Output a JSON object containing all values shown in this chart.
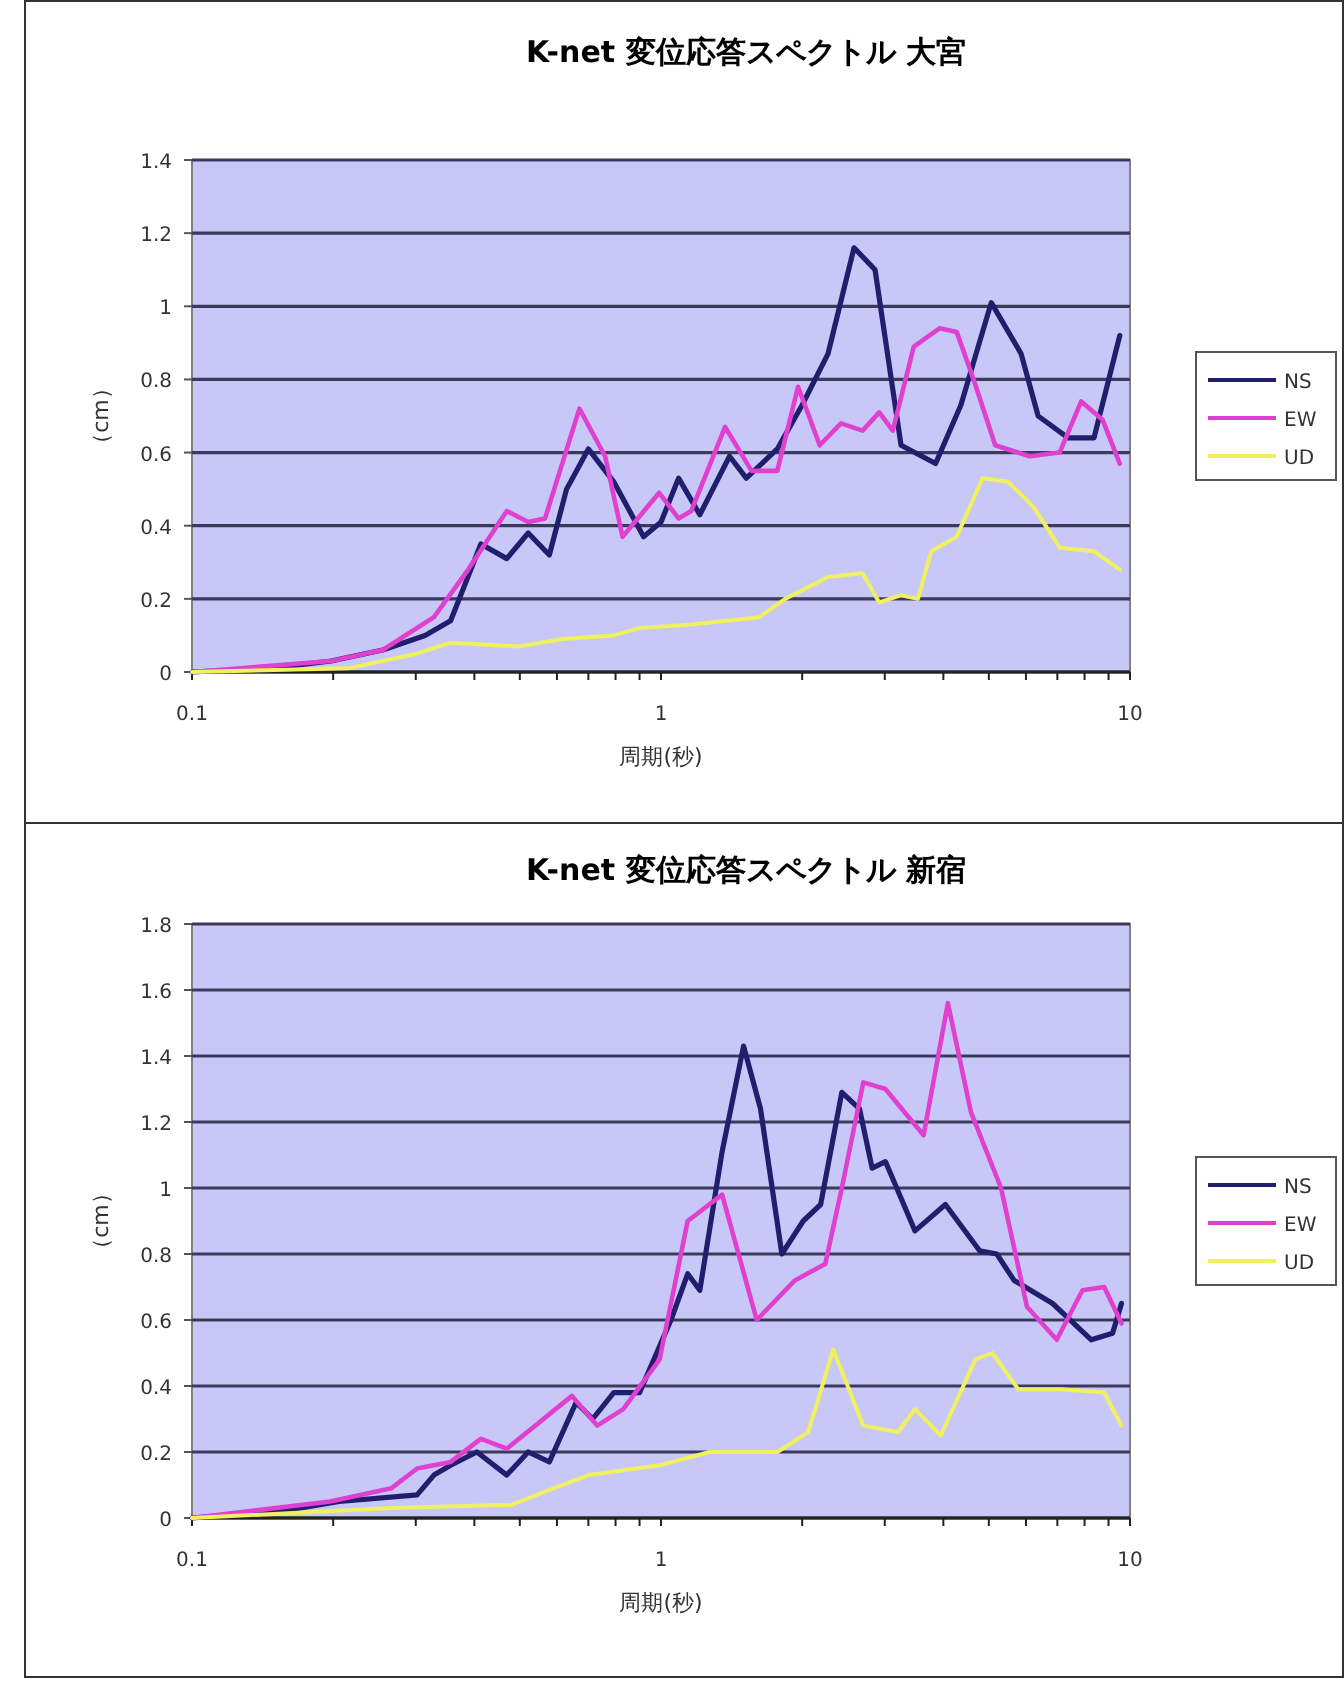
{
  "chart_data": [
    {
      "type": "line",
      "title": "K-net 変位応答スペクトル 大宮",
      "xlabel": "周期(秒)",
      "ylabel": "（cm）",
      "log": "x",
      "xlim": [
        0.1,
        10
      ],
      "xticks": [
        0.1,
        {
          "value": 0.2,
          "label": null
        },
        {
          "value": 0.3,
          "label": null
        },
        {
          "value": 0.4,
          "label": null
        },
        {
          "value": 0.5,
          "label": null
        },
        {
          "value": 0.6,
          "label": null
        },
        {
          "value": 0.7,
          "label": null
        },
        {
          "value": 0.8,
          "label": null
        },
        {
          "value": 0.9,
          "label": null
        },
        1,
        {
          "value": 2,
          "label": null
        },
        {
          "value": 3,
          "label": null
        },
        {
          "value": 4,
          "label": null
        },
        {
          "value": 5,
          "label": null
        },
        {
          "value": 6,
          "label": null
        },
        {
          "value": 7,
          "label": null
        },
        {
          "value": 8,
          "label": null
        },
        {
          "value": 9,
          "label": null
        },
        10
      ],
      "ylim": [
        0,
        1.4
      ],
      "yticks": [
        0,
        0.2,
        0.4,
        0.6,
        0.8,
        1,
        1.2,
        1.4
      ],
      "grid": "y",
      "legend": "right",
      "marker": "none",
      "line_style": "solid",
      "series": [
        {
          "name": "NS",
          "color": "#1f1f6e",
          "x": [
            0.1,
            0.147,
            0.198,
            0.255,
            0.314,
            0.356,
            0.413,
            0.469,
            0.521,
            0.578,
            0.629,
            0.7,
            0.793,
            0.918,
            1.0,
            1.09,
            1.21,
            1.4,
            1.52,
            1.77,
            2.0,
            2.27,
            2.58,
            2.86,
            3.25,
            3.85,
            4.36,
            5.06,
            5.86,
            6.37,
            7.38,
            8.38,
            9.51
          ],
          "values": [
            0,
            0.01,
            0.03,
            0.06,
            0.1,
            0.14,
            0.35,
            0.31,
            0.38,
            0.32,
            0.5,
            0.61,
            0.52,
            0.37,
            0.41,
            0.53,
            0.43,
            0.59,
            0.53,
            0.61,
            0.73,
            0.87,
            1.16,
            1.1,
            0.62,
            0.57,
            0.73,
            1.01,
            0.87,
            0.7,
            0.64,
            0.64,
            0.92
          ]
        },
        {
          "name": "EW",
          "color": "#e040d0",
          "x": [
            0.1,
            0.198,
            0.255,
            0.328,
            0.388,
            0.469,
            0.521,
            0.566,
            0.67,
            0.76,
            0.828,
            0.991,
            1.09,
            1.16,
            1.37,
            1.56,
            1.77,
            1.96,
            2.18,
            2.42,
            2.69,
            2.92,
            3.12,
            3.46,
            3.93,
            4.27,
            4.64,
            5.16,
            6.11,
            7.08,
            7.87,
            8.74,
            9.51
          ],
          "values": [
            0,
            0.03,
            0.06,
            0.15,
            0.28,
            0.44,
            0.41,
            0.42,
            0.72,
            0.59,
            0.37,
            0.49,
            0.42,
            0.44,
            0.67,
            0.55,
            0.55,
            0.78,
            0.62,
            0.68,
            0.66,
            0.71,
            0.66,
            0.89,
            0.94,
            0.93,
            0.8,
            0.62,
            0.59,
            0.6,
            0.74,
            0.69,
            0.57
          ]
        },
        {
          "name": "UD",
          "color": "#f0f060",
          "x": [
            0.1,
            0.215,
            0.301,
            0.356,
            0.499,
            0.617,
            0.793,
            0.9,
            1.16,
            1.62,
            1.84,
            2.27,
            2.69,
            2.92,
            3.25,
            3.53,
            3.77,
            4.27,
            4.85,
            5.5,
            6.24,
            7.08,
            8.38,
            9.51
          ],
          "values": [
            0,
            0.01,
            0.05,
            0.08,
            0.07,
            0.09,
            0.1,
            0.12,
            0.13,
            0.15,
            0.2,
            0.26,
            0.27,
            0.19,
            0.21,
            0.2,
            0.33,
            0.37,
            0.53,
            0.52,
            0.45,
            0.34,
            0.33,
            0.28
          ]
        }
      ]
    },
    {
      "type": "line",
      "title": "K-net 変位応答スペクトル 新宿",
      "xlabel": "周期(秒)",
      "ylabel": "（cm）",
      "log": "x",
      "xlim": [
        0.1,
        10
      ],
      "xticks": [
        0.1,
        {
          "value": 0.2,
          "label": null
        },
        {
          "value": 0.3,
          "label": null
        },
        {
          "value": 0.4,
          "label": null
        },
        {
          "value": 0.5,
          "label": null
        },
        {
          "value": 0.6,
          "label": null
        },
        {
          "value": 0.7,
          "label": null
        },
        {
          "value": 0.8,
          "label": null
        },
        {
          "value": 0.9,
          "label": null
        },
        1,
        {
          "value": 2,
          "label": null
        },
        {
          "value": 3,
          "label": null
        },
        {
          "value": 4,
          "label": null
        },
        {
          "value": 5,
          "label": null
        },
        {
          "value": 6,
          "label": null
        },
        {
          "value": 7,
          "label": null
        },
        {
          "value": 8,
          "label": null
        },
        {
          "value": 9,
          "label": null
        },
        10
      ],
      "ylim": [
        0,
        1.8
      ],
      "yticks": [
        0,
        0.2,
        0.4,
        0.6,
        0.8,
        1,
        1.2,
        1.4,
        1.6,
        1.8
      ],
      "grid": "y",
      "legend": "right",
      "marker": "none",
      "line_style": "solid",
      "series": [
        {
          "name": "NS",
          "color": "#1f1f6e",
          "x": [
            0.1,
            0.154,
            0.206,
            0.302,
            0.328,
            0.356,
            0.405,
            0.469,
            0.521,
            0.578,
            0.659,
            0.715,
            0.793,
            0.9,
            1.05,
            1.14,
            1.21,
            1.35,
            1.5,
            1.63,
            1.81,
            2.01,
            2.19,
            2.43,
            2.65,
            2.82,
            3.01,
            3.48,
            4.04,
            4.78,
            5.2,
            5.66,
            6.84,
            8.27,
            9.18,
            9.59
          ],
          "values": [
            0,
            0.02,
            0.05,
            0.07,
            0.13,
            0.16,
            0.2,
            0.13,
            0.2,
            0.17,
            0.35,
            0.3,
            0.38,
            0.38,
            0.6,
            0.74,
            0.69,
            1.11,
            1.43,
            1.24,
            0.8,
            0.9,
            0.95,
            1.29,
            1.24,
            1.06,
            1.08,
            0.87,
            0.95,
            0.81,
            0.8,
            0.72,
            0.65,
            0.54,
            0.56,
            0.65
          ]
        },
        {
          "name": "EW",
          "color": "#e040d0",
          "x": [
            0.1,
            0.197,
            0.266,
            0.302,
            0.356,
            0.413,
            0.469,
            0.646,
            0.731,
            0.831,
            0.993,
            1.14,
            1.35,
            1.6,
            1.93,
            2.24,
            2.43,
            2.7,
            3.01,
            3.63,
            4.09,
            4.58,
            5.31,
            6.03,
            6.98,
            7.92,
            8.81,
            9.59
          ],
          "values": [
            0,
            0.05,
            0.09,
            0.15,
            0.17,
            0.24,
            0.21,
            0.37,
            0.28,
            0.33,
            0.48,
            0.9,
            0.98,
            0.6,
            0.72,
            0.77,
            1.0,
            1.32,
            1.3,
            1.16,
            1.56,
            1.23,
            1.0,
            0.64,
            0.54,
            0.69,
            0.7,
            0.59
          ]
        },
        {
          "name": "UD",
          "color": "#f0f060",
          "x": [
            0.1,
            0.266,
            0.48,
            0.59,
            0.701,
            0.993,
            1.27,
            1.77,
            2.06,
            2.33,
            2.7,
            3.2,
            3.48,
            3.95,
            4.68,
            5.09,
            5.78,
            7.13,
            8.81,
            9.59
          ],
          "values": [
            0,
            0.03,
            0.04,
            0.09,
            0.13,
            0.16,
            0.2,
            0.2,
            0.26,
            0.51,
            0.28,
            0.26,
            0.33,
            0.25,
            0.48,
            0.5,
            0.39,
            0.39,
            0.38,
            0.28
          ]
        }
      ]
    }
  ]
}
